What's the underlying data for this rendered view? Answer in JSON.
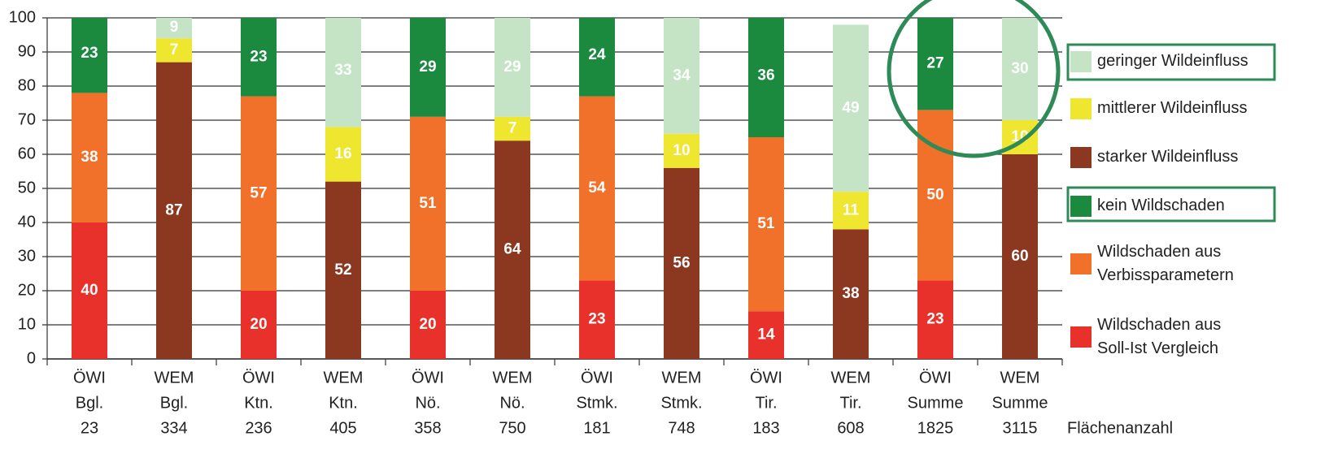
{
  "chart_data": {
    "type": "stacked_bar",
    "categories": [
      [
        "ÖWI",
        "Bgl.",
        "23"
      ],
      [
        "WEM",
        "Bgl.",
        "334"
      ],
      [
        "ÖWI",
        "Ktn.",
        "236"
      ],
      [
        "WEM",
        "Ktn.",
        "405"
      ],
      [
        "ÖWI",
        "Nö.",
        "358"
      ],
      [
        "WEM",
        "Nö.",
        "750"
      ],
      [
        "ÖWI",
        "Stmk.",
        "181"
      ],
      [
        "WEM",
        "Stmk.",
        "748"
      ],
      [
        "ÖWI",
        "Tir.",
        "183"
      ],
      [
        "WEM",
        "Tir.",
        "608"
      ],
      [
        "ÖWI",
        "Summe",
        "1825"
      ],
      [
        "WEM",
        "Summe",
        "3115"
      ]
    ],
    "x_label": "Flächenanzahl",
    "series": [
      {
        "name": "Wildschaden aus Soll-Ist Vergleich",
        "color": "#e8312b",
        "values": [
          40,
          null,
          20,
          null,
          20,
          null,
          23,
          null,
          14,
          null,
          23,
          null
        ]
      },
      {
        "name": "Wildschaden aus Verbissparametern",
        "color": "#f1702a",
        "values": [
          38,
          null,
          57,
          null,
          51,
          null,
          54,
          null,
          51,
          null,
          50,
          null
        ]
      },
      {
        "name": "kein Wildschaden",
        "color": "#1b8a3f",
        "values": [
          23,
          null,
          23,
          null,
          29,
          null,
          24,
          null,
          36,
          null,
          27,
          null
        ]
      },
      {
        "name": "starker Wildeinfluss",
        "color": "#8c3720",
        "values": [
          null,
          87,
          null,
          52,
          null,
          64,
          null,
          56,
          null,
          38,
          null,
          60
        ]
      },
      {
        "name": "mittlerer Wildeinfluss",
        "color": "#efe62f",
        "values": [
          null,
          7,
          null,
          16,
          null,
          7,
          null,
          10,
          null,
          11,
          null,
          10
        ]
      },
      {
        "name": "geringer Wildeinfluss",
        "color": "#c5e4c6",
        "values": [
          null,
          9,
          null,
          33,
          null,
          29,
          null,
          34,
          null,
          49,
          null,
          30
        ]
      }
    ],
    "ylim": [
      0,
      100
    ],
    "yticks": [
      0,
      10,
      20,
      30,
      40,
      50,
      60,
      70,
      80,
      90,
      100
    ],
    "grid": true,
    "legend": "right"
  }
}
